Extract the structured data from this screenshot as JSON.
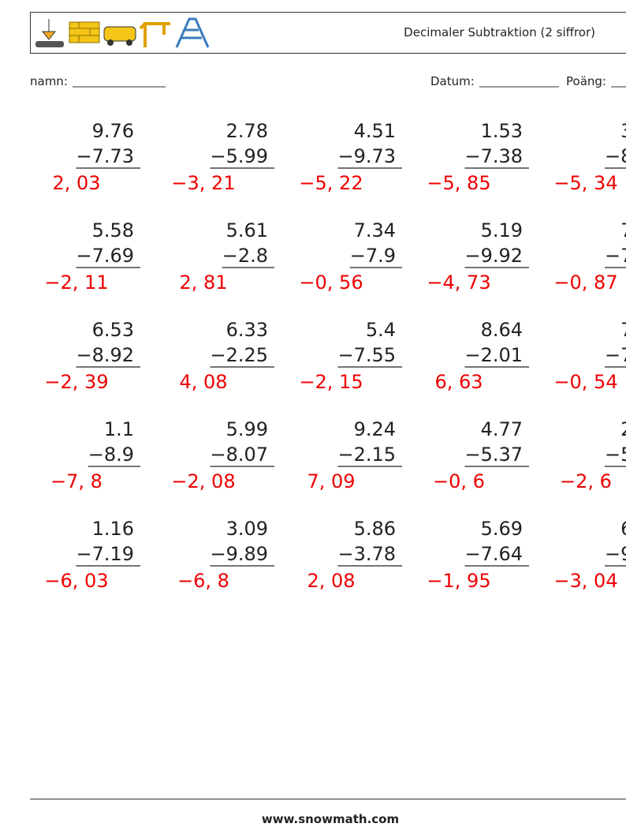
{
  "header": {
    "title": "Decimaler Subtraktion (2 siffror)",
    "name_label": "namn:",
    "date_label": "Datum:",
    "score_label": "Poäng:"
  },
  "problems": [
    [
      {
        "top": "9.76",
        "bottom": "−7.73",
        "answer": "2, 03"
      },
      {
        "top": "2.78",
        "bottom": "−5.99",
        "answer": "−3, 21"
      },
      {
        "top": "4.51",
        "bottom": "−9.73",
        "answer": "−5, 22"
      },
      {
        "top": "1.53",
        "bottom": "−7.38",
        "answer": "−5, 85"
      },
      {
        "top": "3.",
        "bottom": "−8.",
        "answer": "−5, 34"
      }
    ],
    [
      {
        "top": "5.58",
        "bottom": "−7.69",
        "answer": "−2, 11"
      },
      {
        "top": "5.61",
        "bottom": "−2.8",
        "answer": "2, 81"
      },
      {
        "top": "7.34",
        "bottom": "−7.9",
        "answer": "−0, 56"
      },
      {
        "top": "5.19",
        "bottom": "−9.92",
        "answer": "−4, 73"
      },
      {
        "top": "7.",
        "bottom": "−7.",
        "answer": "−0, 87"
      }
    ],
    [
      {
        "top": "6.53",
        "bottom": "−8.92",
        "answer": "−2, 39"
      },
      {
        "top": "6.33",
        "bottom": "−2.25",
        "answer": "4, 08"
      },
      {
        "top": "5.4",
        "bottom": "−7.55",
        "answer": "−2, 15"
      },
      {
        "top": "8.64",
        "bottom": "−2.01",
        "answer": "6, 63"
      },
      {
        "top": "7.",
        "bottom": "−7.",
        "answer": "−0, 54"
      }
    ],
    [
      {
        "top": "1.1",
        "bottom": "−8.9",
        "answer": "−7, 8"
      },
      {
        "top": "5.99",
        "bottom": "−8.07",
        "answer": "−2, 08"
      },
      {
        "top": "9.24",
        "bottom": "−2.15",
        "answer": "7, 09"
      },
      {
        "top": "4.77",
        "bottom": "−5.37",
        "answer": "−0, 6"
      },
      {
        "top": "2.",
        "bottom": "−5.",
        "answer": "−2, 6"
      }
    ],
    [
      {
        "top": "1.16",
        "bottom": "−7.19",
        "answer": "−6, 03"
      },
      {
        "top": "3.09",
        "bottom": "−9.89",
        "answer": "−6, 8"
      },
      {
        "top": "5.86",
        "bottom": "−3.78",
        "answer": "2, 08"
      },
      {
        "top": "5.69",
        "bottom": "−7.64",
        "answer": "−1, 95"
      },
      {
        "top": "6.",
        "bottom": "−9.",
        "answer": "−3, 04"
      }
    ]
  ],
  "footer": {
    "url": "www.snowmath.com"
  }
}
